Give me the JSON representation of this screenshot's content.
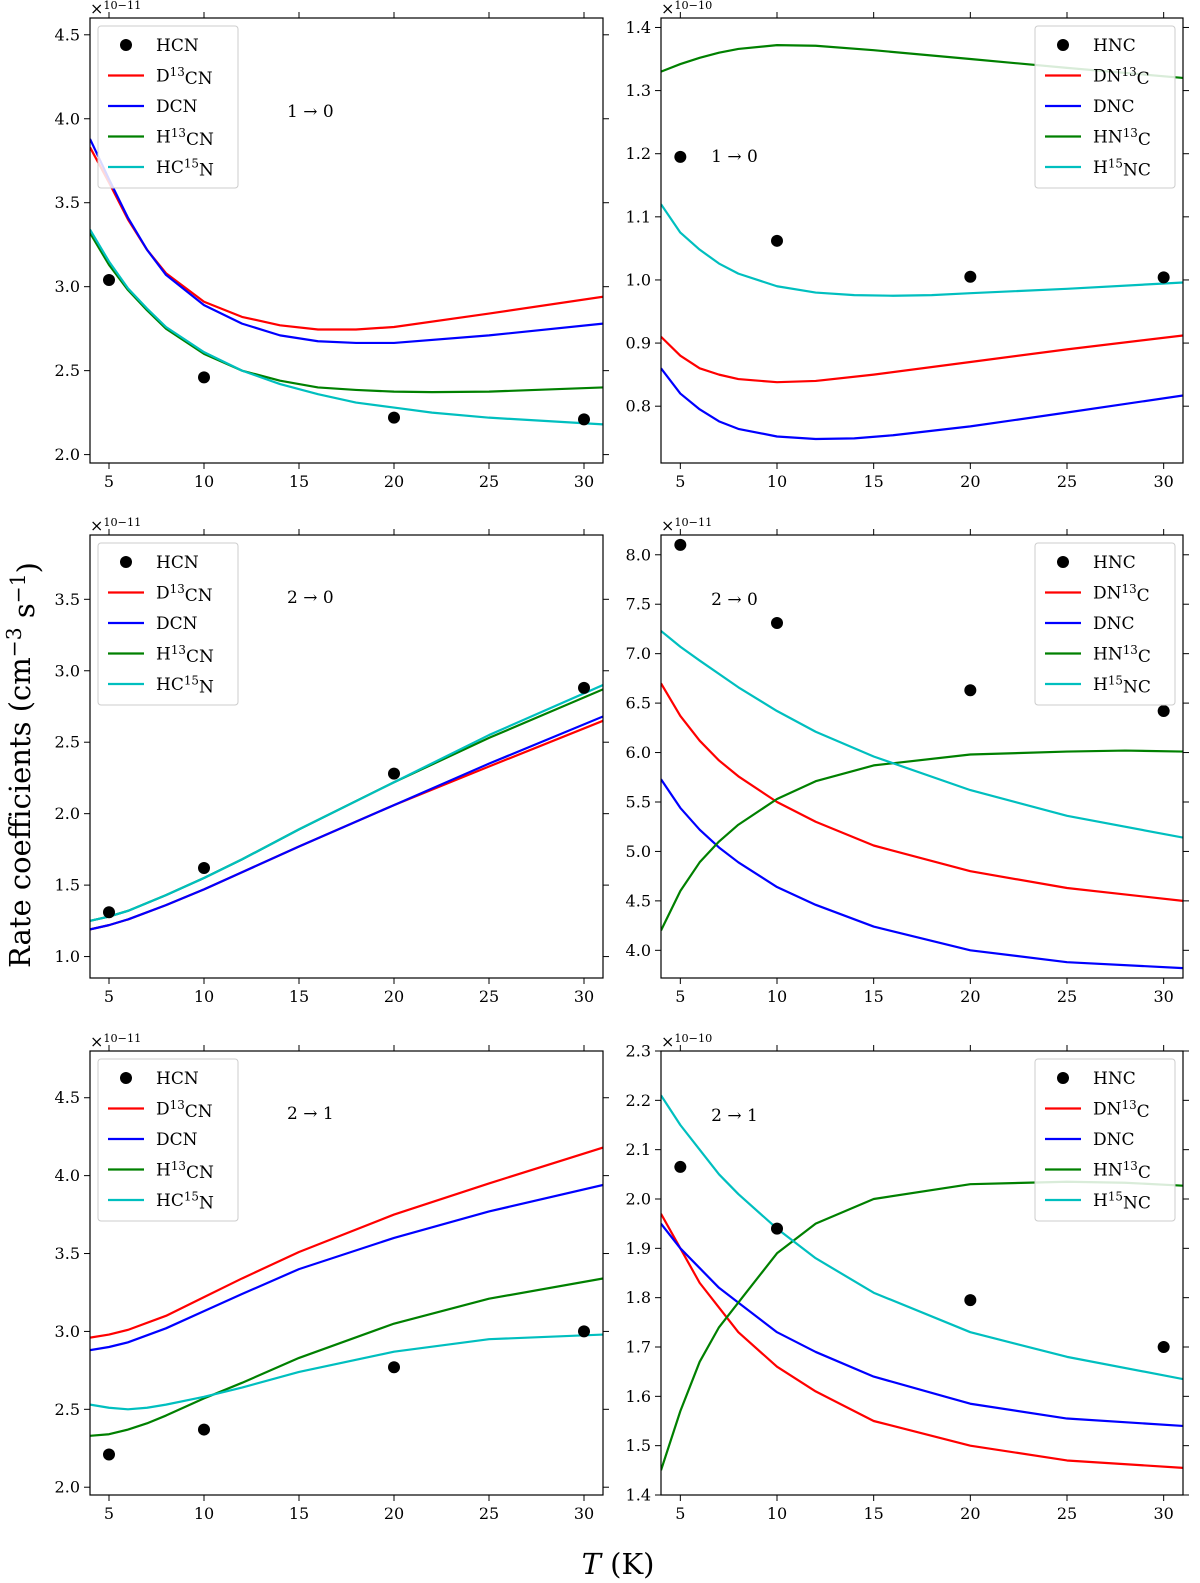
{
  "figure": {
    "ylabel": "Rate coefficients (cm−3 s−1)",
    "xlabel": "T (K)"
  },
  "colors": {
    "HCN": "#000000",
    "D13CN": "#ff0000",
    "DCN": "#0000ff",
    "H13CN": "#008000",
    "HC15N": "#00bfbf"
  },
  "chart_data": [
    {
      "type": "line",
      "panel": "HCN 1→0",
      "transition": "1 → 0",
      "multiplier": "×10−11",
      "xlim": [
        4,
        31
      ],
      "ylim": [
        1.95,
        4.6
      ],
      "xticks": [
        5,
        10,
        15,
        20,
        25,
        30
      ],
      "yticks": [
        2.0,
        2.5,
        3.0,
        3.5,
        4.0,
        4.5
      ],
      "legend": "top-left",
      "series": [
        {
          "name": "HCN",
          "label": "HCN",
          "kind": "scatter",
          "x": [
            5,
            10,
            20,
            30
          ],
          "y": [
            3.04,
            2.46,
            2.22,
            2.21
          ]
        },
        {
          "name": "D13CN",
          "label": "D13CN",
          "kind": "line",
          "x": [
            4,
            5,
            6,
            7,
            8,
            10,
            12,
            14,
            16,
            18,
            20,
            25,
            31
          ],
          "y": [
            3.83,
            3.62,
            3.4,
            3.22,
            3.08,
            2.91,
            2.82,
            2.77,
            2.745,
            2.745,
            2.76,
            2.84,
            2.94
          ]
        },
        {
          "name": "DCN",
          "label": "DCN",
          "kind": "line",
          "x": [
            4,
            5,
            6,
            7,
            8,
            10,
            12,
            14,
            16,
            18,
            20,
            25,
            31
          ],
          "y": [
            3.88,
            3.64,
            3.41,
            3.22,
            3.07,
            2.89,
            2.78,
            2.71,
            2.675,
            2.665,
            2.665,
            2.71,
            2.78
          ]
        },
        {
          "name": "H13CN",
          "label": "H13CN",
          "kind": "line",
          "x": [
            4,
            5,
            6,
            7,
            8,
            10,
            12,
            14,
            16,
            18,
            20,
            22,
            25,
            31
          ],
          "y": [
            3.32,
            3.13,
            2.98,
            2.86,
            2.75,
            2.6,
            2.5,
            2.44,
            2.4,
            2.385,
            2.375,
            2.372,
            2.375,
            2.4
          ]
        },
        {
          "name": "HC15N",
          "label": "HC15N",
          "kind": "line",
          "x": [
            4,
            5,
            6,
            7,
            8,
            10,
            12,
            14,
            16,
            18,
            20,
            22,
            25,
            28,
            31
          ],
          "y": [
            3.34,
            3.15,
            2.99,
            2.87,
            2.76,
            2.61,
            2.5,
            2.42,
            2.36,
            2.31,
            2.28,
            2.25,
            2.22,
            2.2,
            2.18
          ]
        }
      ]
    },
    {
      "type": "line",
      "panel": "HNC 1→0",
      "transition": "1 → 0",
      "multiplier": "×10−10",
      "xlim": [
        4,
        31
      ],
      "ylim": [
        0.71,
        1.415
      ],
      "xticks": [
        5,
        10,
        15,
        20,
        25,
        30
      ],
      "yticks": [
        0.8,
        0.9,
        1.0,
        1.1,
        1.2,
        1.3,
        1.4
      ],
      "legend": "top-right",
      "series": [
        {
          "name": "HCN",
          "label": "HNC",
          "kind": "scatter",
          "x": [
            5,
            10,
            20,
            30
          ],
          "y": [
            1.195,
            1.062,
            1.005,
            1.004
          ]
        },
        {
          "name": "D13CN",
          "label": "DN13C",
          "kind": "line",
          "x": [
            4,
            5,
            6,
            7,
            8,
            10,
            12,
            15,
            20,
            25,
            31
          ],
          "y": [
            0.91,
            0.88,
            0.86,
            0.85,
            0.843,
            0.838,
            0.84,
            0.85,
            0.87,
            0.89,
            0.912
          ]
        },
        {
          "name": "DCN",
          "label": "DNC",
          "kind": "line",
          "x": [
            4,
            5,
            6,
            7,
            8,
            10,
            12,
            14,
            16,
            20,
            25,
            31
          ],
          "y": [
            0.86,
            0.82,
            0.795,
            0.776,
            0.764,
            0.752,
            0.748,
            0.749,
            0.754,
            0.768,
            0.79,
            0.817
          ]
        },
        {
          "name": "H13CN",
          "label": "HN13C",
          "kind": "line",
          "x": [
            4,
            5,
            6,
            7,
            8,
            10,
            12,
            15,
            20,
            25,
            31
          ],
          "y": [
            1.33,
            1.342,
            1.352,
            1.36,
            1.366,
            1.372,
            1.371,
            1.364,
            1.35,
            1.336,
            1.32
          ]
        },
        {
          "name": "HC15N",
          "label": "H15NC",
          "kind": "line",
          "x": [
            4,
            5,
            6,
            7,
            8,
            10,
            12,
            14,
            16,
            18,
            20,
            25,
            31
          ],
          "y": [
            1.12,
            1.075,
            1.048,
            1.026,
            1.01,
            0.99,
            0.98,
            0.976,
            0.975,
            0.976,
            0.979,
            0.986,
            0.996
          ]
        }
      ]
    },
    {
      "type": "line",
      "panel": "HCN 2→0",
      "transition": "2 → 0",
      "multiplier": "×10−11",
      "xlim": [
        4,
        31
      ],
      "ylim": [
        0.85,
        3.95
      ],
      "xticks": [
        5,
        10,
        15,
        20,
        25,
        30
      ],
      "yticks": [
        1.0,
        1.5,
        2.0,
        2.5,
        3.0,
        3.5
      ],
      "legend": "top-left",
      "series": [
        {
          "name": "HCN",
          "label": "HCN",
          "kind": "scatter",
          "x": [
            5,
            10,
            20,
            30
          ],
          "y": [
            1.31,
            1.62,
            2.28,
            2.88
          ]
        },
        {
          "name": "D13CN",
          "label": "D13CN",
          "kind": "line",
          "x": [
            4,
            5,
            6,
            8,
            10,
            12,
            15,
            20,
            25,
            31
          ],
          "y": [
            1.19,
            1.22,
            1.26,
            1.36,
            1.47,
            1.59,
            1.77,
            2.06,
            2.33,
            2.65
          ]
        },
        {
          "name": "DCN",
          "label": "DCN",
          "kind": "line",
          "x": [
            4,
            5,
            6,
            8,
            10,
            12,
            15,
            20,
            25,
            31
          ],
          "y": [
            1.19,
            1.22,
            1.26,
            1.36,
            1.47,
            1.59,
            1.77,
            2.06,
            2.35,
            2.68
          ]
        },
        {
          "name": "H13CN",
          "label": "H13CN",
          "kind": "line",
          "x": [
            4,
            5,
            6,
            8,
            10,
            12,
            15,
            20,
            25,
            31
          ],
          "y": [
            1.25,
            1.28,
            1.32,
            1.43,
            1.55,
            1.68,
            1.89,
            2.22,
            2.53,
            2.87
          ]
        },
        {
          "name": "HC15N",
          "label": "HC15N",
          "kind": "line",
          "x": [
            4,
            5,
            6,
            8,
            10,
            12,
            15,
            20,
            25,
            31
          ],
          "y": [
            1.25,
            1.28,
            1.32,
            1.43,
            1.55,
            1.68,
            1.89,
            2.22,
            2.55,
            2.9
          ]
        }
      ]
    },
    {
      "type": "line",
      "panel": "HNC 2→0",
      "transition": "2 → 0",
      "multiplier": "×10−11",
      "xlim": [
        4,
        31
      ],
      "ylim": [
        3.72,
        8.2
      ],
      "xticks": [
        5,
        10,
        15,
        20,
        25,
        30
      ],
      "yticks": [
        4.0,
        4.5,
        5.0,
        5.5,
        6.0,
        6.5,
        7.0,
        7.5,
        8.0
      ],
      "legend": "top-right",
      "series": [
        {
          "name": "HCN",
          "label": "HNC",
          "kind": "scatter",
          "x": [
            5,
            10,
            20,
            30
          ],
          "y": [
            8.1,
            7.31,
            6.63,
            6.42
          ]
        },
        {
          "name": "D13CN",
          "label": "DN13C",
          "kind": "line",
          "x": [
            4,
            5,
            6,
            7,
            8,
            10,
            12,
            15,
            20,
            25,
            31
          ],
          "y": [
            6.7,
            6.37,
            6.12,
            5.92,
            5.76,
            5.5,
            5.3,
            5.06,
            4.8,
            4.63,
            4.5
          ]
        },
        {
          "name": "DCN",
          "label": "DNC",
          "kind": "line",
          "x": [
            4,
            5,
            6,
            7,
            8,
            10,
            12,
            15,
            20,
            25,
            31
          ],
          "y": [
            5.73,
            5.44,
            5.22,
            5.04,
            4.89,
            4.64,
            4.46,
            4.24,
            4.0,
            3.88,
            3.82
          ]
        },
        {
          "name": "H13CN",
          "label": "HN13C",
          "kind": "line",
          "x": [
            4,
            5,
            6,
            7,
            8,
            10,
            12,
            15,
            20,
            25,
            28,
            31
          ],
          "y": [
            4.2,
            4.6,
            4.89,
            5.1,
            5.27,
            5.53,
            5.71,
            5.87,
            5.98,
            6.01,
            6.02,
            6.01
          ]
        },
        {
          "name": "HC15N",
          "label": "H15NC",
          "kind": "line",
          "x": [
            4,
            5,
            6,
            8,
            10,
            12,
            15,
            20,
            25,
            31
          ],
          "y": [
            7.23,
            7.07,
            6.93,
            6.66,
            6.42,
            6.21,
            5.96,
            5.62,
            5.36,
            5.14
          ]
        }
      ]
    },
    {
      "type": "line",
      "panel": "HCN 2→1",
      "transition": "2 → 1",
      "multiplier": "×10−11",
      "xlim": [
        4,
        31
      ],
      "ylim": [
        1.95,
        4.8
      ],
      "xticks": [
        5,
        10,
        15,
        20,
        25,
        30
      ],
      "yticks": [
        2.0,
        2.5,
        3.0,
        3.5,
        4.0,
        4.5
      ],
      "legend": "top-left",
      "series": [
        {
          "name": "HCN",
          "label": "HCN",
          "kind": "scatter",
          "x": [
            5,
            10,
            20,
            30
          ],
          "y": [
            2.21,
            2.37,
            2.77,
            3.0
          ]
        },
        {
          "name": "D13CN",
          "label": "D13CN",
          "kind": "line",
          "x": [
            4,
            5,
            6,
            8,
            10,
            12,
            15,
            20,
            25,
            31
          ],
          "y": [
            2.96,
            2.98,
            3.01,
            3.1,
            3.22,
            3.34,
            3.51,
            3.75,
            3.95,
            4.18
          ]
        },
        {
          "name": "DCN",
          "label": "DCN",
          "kind": "line",
          "x": [
            4,
            5,
            6,
            8,
            10,
            12,
            15,
            20,
            25,
            31
          ],
          "y": [
            2.88,
            2.9,
            2.93,
            3.02,
            3.13,
            3.24,
            3.4,
            3.6,
            3.77,
            3.94
          ]
        },
        {
          "name": "H13CN",
          "label": "H13CN",
          "kind": "line",
          "x": [
            4,
            5,
            6,
            7,
            8,
            10,
            12,
            15,
            20,
            25,
            31
          ],
          "y": [
            2.33,
            2.34,
            2.37,
            2.41,
            2.46,
            2.57,
            2.67,
            2.83,
            3.05,
            3.21,
            3.34
          ]
        },
        {
          "name": "HC15N",
          "label": "HC15N",
          "kind": "line",
          "x": [
            4,
            5,
            6,
            7,
            8,
            10,
            12,
            15,
            20,
            25,
            31
          ],
          "y": [
            2.53,
            2.51,
            2.5,
            2.51,
            2.53,
            2.58,
            2.64,
            2.74,
            2.87,
            2.95,
            2.98
          ]
        }
      ]
    },
    {
      "type": "line",
      "panel": "HNC 2→1",
      "transition": "2 → 1",
      "multiplier": "×10−10",
      "xlim": [
        4,
        31
      ],
      "ylim": [
        1.4,
        2.3
      ],
      "xticks": [
        5,
        10,
        15,
        20,
        25,
        30
      ],
      "yticks": [
        1.4,
        1.5,
        1.6,
        1.7,
        1.8,
        1.9,
        2.0,
        2.1,
        2.2,
        2.3
      ],
      "legend": "top-right",
      "series": [
        {
          "name": "HCN",
          "label": "HNC",
          "kind": "scatter",
          "x": [
            5,
            10,
            20,
            30
          ],
          "y": [
            2.065,
            1.94,
            1.795,
            1.7
          ]
        },
        {
          "name": "D13CN",
          "label": "DN13C",
          "kind": "line",
          "x": [
            4,
            5,
            6,
            7,
            8,
            10,
            12,
            15,
            20,
            25,
            31
          ],
          "y": [
            1.97,
            1.9,
            1.83,
            1.78,
            1.73,
            1.66,
            1.61,
            1.55,
            1.5,
            1.47,
            1.455
          ]
        },
        {
          "name": "DCN",
          "label": "DNC",
          "kind": "line",
          "x": [
            4,
            5,
            6,
            7,
            8,
            10,
            12,
            15,
            20,
            25,
            31
          ],
          "y": [
            1.95,
            1.9,
            1.86,
            1.82,
            1.79,
            1.73,
            1.69,
            1.64,
            1.585,
            1.555,
            1.54
          ]
        },
        {
          "name": "H13CN",
          "label": "HN13C",
          "kind": "line",
          "x": [
            4,
            5,
            6,
            7,
            8,
            10,
            12,
            15,
            20,
            25,
            28,
            31
          ],
          "y": [
            1.45,
            1.57,
            1.67,
            1.74,
            1.79,
            1.89,
            1.95,
            2.0,
            2.03,
            2.035,
            2.033,
            2.027
          ]
        },
        {
          "name": "HC15N",
          "label": "H15NC",
          "kind": "line",
          "x": [
            4,
            5,
            6,
            7,
            8,
            10,
            12,
            15,
            20,
            25,
            31
          ],
          "y": [
            2.21,
            2.15,
            2.1,
            2.05,
            2.01,
            1.94,
            1.88,
            1.81,
            1.73,
            1.68,
            1.635
          ]
        }
      ]
    }
  ]
}
